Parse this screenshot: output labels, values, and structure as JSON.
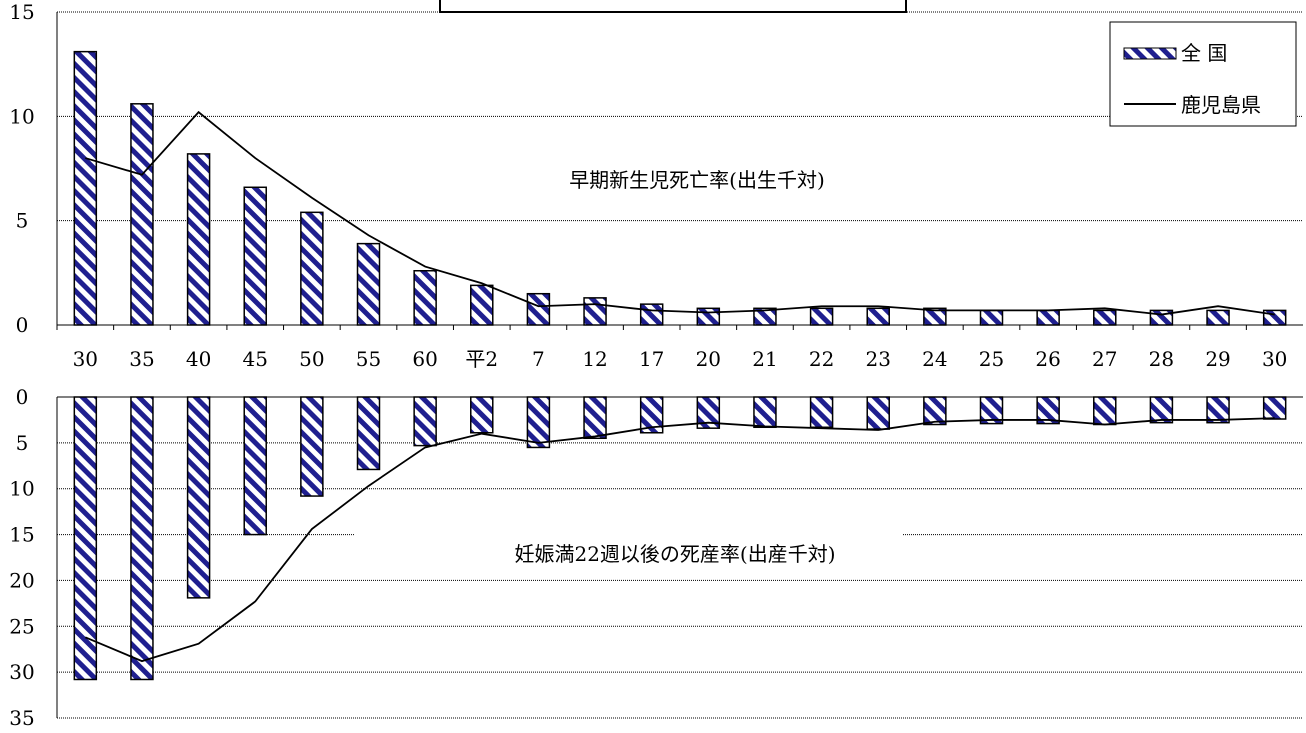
{
  "colors": {
    "bar_fill": "#1f1f8f",
    "bar_stripe": "#ffffff",
    "line": "#000000",
    "grid": "#000000"
  },
  "legend": {
    "national": "全 国",
    "kagoshima": "鹿児島県",
    "placement": "top-right"
  },
  "chart_data": [
    {
      "type": "bar",
      "title": "早期新生児死亡率(出生千対)",
      "categories": [
        "30",
        "35",
        "40",
        "45",
        "50",
        "55",
        "60",
        "平2",
        "7",
        "12",
        "17",
        "20",
        "21",
        "22",
        "23",
        "24",
        "25",
        "26",
        "27",
        "28",
        "29",
        "30"
      ],
      "ylim": [
        0,
        15
      ],
      "yticks": [
        "0",
        "5",
        "10",
        "15"
      ],
      "grid": true,
      "series": [
        {
          "name": "全 国",
          "type": "bar",
          "values": [
            13.1,
            10.6,
            8.2,
            6.6,
            5.4,
            3.9,
            2.6,
            1.9,
            1.5,
            1.3,
            1.0,
            0.8,
            0.8,
            0.8,
            0.8,
            0.8,
            0.7,
            0.7,
            0.7,
            0.7,
            0.7,
            0.7
          ]
        },
        {
          "name": "鹿児島県",
          "type": "line",
          "values": [
            8.0,
            7.2,
            10.2,
            8.0,
            6.1,
            4.3,
            2.8,
            2.0,
            0.9,
            1.0,
            0.7,
            0.6,
            0.7,
            0.9,
            0.9,
            0.7,
            0.7,
            0.7,
            0.8,
            0.5,
            0.9,
            0.5
          ]
        }
      ]
    },
    {
      "type": "bar",
      "title": "妊娠満22週以後の死産率(出産千対)",
      "categories": [
        "30",
        "35",
        "40",
        "45",
        "50",
        "55",
        "60",
        "平2",
        "7",
        "12",
        "17",
        "20",
        "21",
        "22",
        "23",
        "24",
        "25",
        "26",
        "27",
        "28",
        "29",
        "30"
      ],
      "ylim": [
        0,
        35
      ],
      "y_inverted": true,
      "yticks": [
        "0",
        "5",
        "10",
        "15",
        "20",
        "25",
        "30",
        "35"
      ],
      "grid": true,
      "series": [
        {
          "name": "全 国",
          "type": "bar",
          "values": [
            30.8,
            30.8,
            21.9,
            15.0,
            10.8,
            7.9,
            5.3,
            3.9,
            5.5,
            4.5,
            3.9,
            3.4,
            3.3,
            3.3,
            3.5,
            3.0,
            2.9,
            2.9,
            3.0,
            2.8,
            2.8,
            2.4
          ]
        },
        {
          "name": "鹿児島県",
          "type": "line",
          "values": [
            26.2,
            28.8,
            26.9,
            22.3,
            14.4,
            9.7,
            5.5,
            4.0,
            5.0,
            4.3,
            3.3,
            2.8,
            3.2,
            3.4,
            3.6,
            2.7,
            2.5,
            2.5,
            3.0,
            2.5,
            2.5,
            2.3
          ]
        }
      ]
    }
  ]
}
